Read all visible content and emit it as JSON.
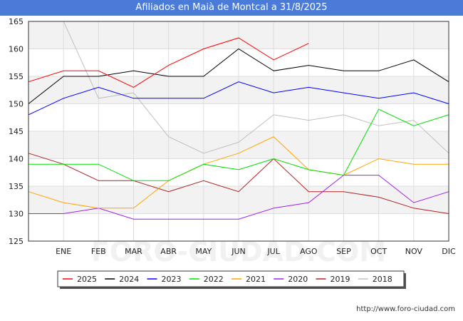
{
  "title": "Afiliados en Maià de Montcal a 31/8/2025",
  "watermark": "FORO-CIUDAD.COM",
  "source_url": "http://www.foro-ciudad.com",
  "colors": {
    "title_bg": "#4a7bd8",
    "band": "#f2f2f2",
    "grid": "#dddddd"
  },
  "chart_data": {
    "type": "line",
    "title": "Afiliados en Maià de Montcal a 31/8/2025",
    "xlabel": "",
    "ylabel": "",
    "categories": [
      "",
      "ENE",
      "FEB",
      "MAR",
      "ABR",
      "MAY",
      "JUN",
      "JUL",
      "AGO",
      "SEP",
      "OCT",
      "NOV",
      "DIC"
    ],
    "ylim": [
      125,
      165
    ],
    "yticks": [
      125,
      130,
      135,
      140,
      145,
      150,
      155,
      160,
      165
    ],
    "grid": true,
    "legend_position": "bottom",
    "series": [
      {
        "name": "2025",
        "color": "#ff0000",
        "values": [
          154,
          156,
          156,
          153,
          157,
          160,
          162,
          158,
          161,
          null,
          null,
          null,
          null
        ]
      },
      {
        "name": "2024",
        "color": "#000000",
        "values": [
          150,
          155,
          155,
          156,
          155,
          155,
          160,
          156,
          157,
          156,
          156,
          158,
          154
        ]
      },
      {
        "name": "2023",
        "color": "#0000ff",
        "values": [
          148,
          151,
          153,
          151,
          151,
          151,
          154,
          152,
          153,
          152,
          151,
          152,
          150
        ]
      },
      {
        "name": "2022",
        "color": "#00e000",
        "values": [
          139,
          139,
          139,
          136,
          136,
          139,
          138,
          140,
          138,
          137,
          149,
          146,
          148
        ]
      },
      {
        "name": "2021",
        "color": "#ffa500",
        "values": [
          134,
          132,
          131,
          131,
          136,
          139,
          141,
          144,
          138,
          137,
          140,
          139,
          139
        ]
      },
      {
        "name": "2020",
        "color": "#a020f0",
        "values": [
          130,
          130,
          131,
          129,
          129,
          129,
          129,
          131,
          132,
          137,
          137,
          132,
          134
        ]
      },
      {
        "name": "2019",
        "color": "#b22222",
        "values": [
          141,
          139,
          136,
          136,
          134,
          136,
          134,
          140,
          134,
          134,
          133,
          131,
          130
        ]
      },
      {
        "name": "2018",
        "color": "#c0c0c0",
        "values": [
          null,
          165,
          151,
          152,
          144,
          141,
          143,
          148,
          147,
          148,
          146,
          147,
          141
        ]
      }
    ]
  }
}
